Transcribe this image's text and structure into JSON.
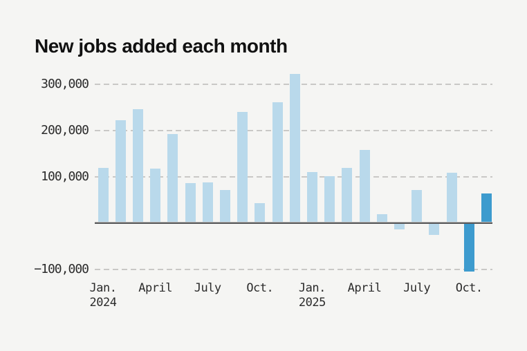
{
  "title": "New jobs added each month",
  "style": {
    "background": "#f5f5f3",
    "grid_color": "#c9c8c6",
    "baseline_color": "#58585a",
    "tick_label_color": "#2b2b2b",
    "title_color": "#111111",
    "bar_color_default": "#b9d9eb",
    "bar_color_highlight": "#3d9bce"
  },
  "chart_data": {
    "type": "bar",
    "title": "New jobs added each month",
    "categories": [
      "Jan. 2024",
      "Feb. 2024",
      "March 2024",
      "April 2024",
      "May 2024",
      "June 2024",
      "July 2024",
      "Aug. 2024",
      "Sept. 2024",
      "Oct. 2024",
      "Nov. 2024",
      "Dec. 2024",
      "Jan. 2025",
      "Feb. 2025",
      "March 2025",
      "April 2025",
      "May 2025",
      "June 2025",
      "July 2025",
      "Aug. 2025",
      "Sept. 2025",
      "Oct. 2025",
      "Nov. 2025"
    ],
    "values": [
      119000,
      222000,
      246000,
      118000,
      193000,
      87000,
      88000,
      71000,
      240000,
      44000,
      261000,
      323000,
      111000,
      102000,
      120000,
      158000,
      19000,
      -13000,
      72000,
      -26000,
      109000,
      -105000,
      64000
    ],
    "unit": "jobs per month",
    "highlight_indices": [
      21,
      22
    ],
    "legend": "none",
    "grid": "horizontal-dashed",
    "ylim": [
      -130000,
      340000
    ],
    "y_axis": {
      "baseline_value": 0,
      "ticks": [
        {
          "value": 300000,
          "label": "300,000"
        },
        {
          "value": 200000,
          "label": "200,000"
        },
        {
          "value": 100000,
          "label": "100,000"
        },
        {
          "value": -100000,
          "label": "−100,000"
        }
      ]
    },
    "x_axis": {
      "ticks": [
        {
          "index": 0,
          "label": "Jan.",
          "sublabel": "2024"
        },
        {
          "index": 3,
          "label": "April",
          "sublabel": ""
        },
        {
          "index": 6,
          "label": "July",
          "sublabel": ""
        },
        {
          "index": 9,
          "label": "Oct.",
          "sublabel": ""
        },
        {
          "index": 12,
          "label": "Jan.",
          "sublabel": "2025"
        },
        {
          "index": 15,
          "label": "April",
          "sublabel": ""
        },
        {
          "index": 18,
          "label": "July",
          "sublabel": ""
        },
        {
          "index": 21,
          "label": "Oct.",
          "sublabel": ""
        }
      ]
    }
  }
}
